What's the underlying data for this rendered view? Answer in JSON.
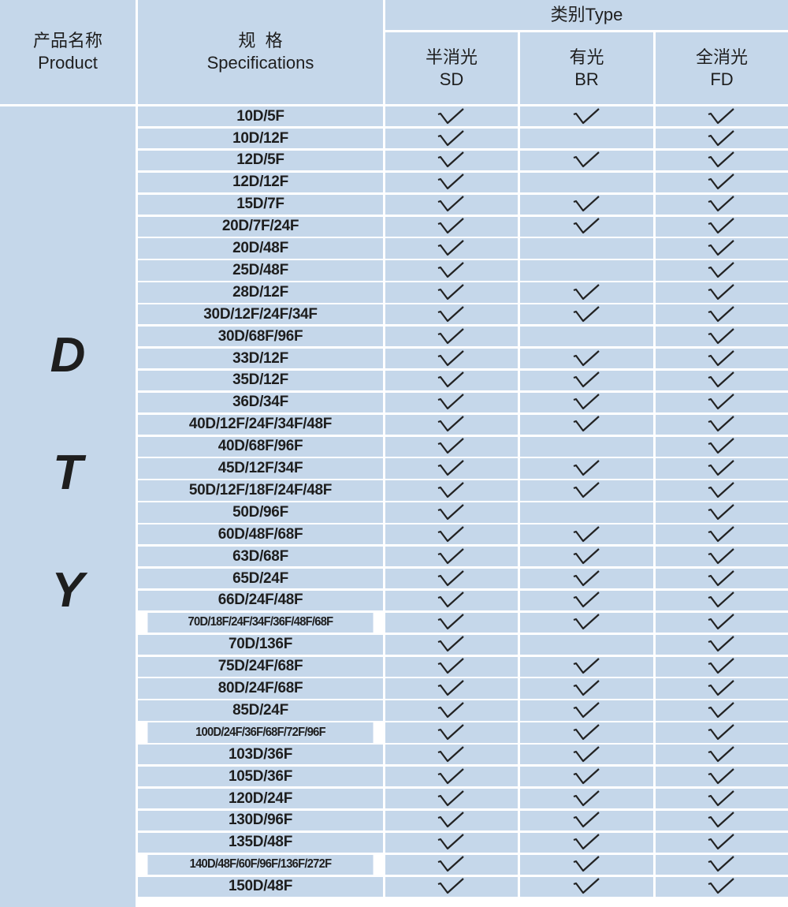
{
  "header": {
    "product_cn": "产品名称",
    "product_en": "Product",
    "spec_cn": "规  格",
    "spec_en": "Specifications",
    "type_group": "类别Type",
    "types": [
      {
        "cn": "半消光",
        "en": "SD"
      },
      {
        "cn": "有光",
        "en": "BR"
      },
      {
        "cn": "全消光",
        "en": "FD"
      }
    ]
  },
  "product_letters": [
    "D",
    "T",
    "Y"
  ],
  "colors": {
    "cell_bg": "#c5d7ea",
    "grid": "#ffffff",
    "text": "#1e1e1e"
  },
  "check_icon": "checkmark-icon",
  "rows": [
    {
      "spec": "10D/5F",
      "sd": true,
      "br": true,
      "fd": true
    },
    {
      "spec": "10D/12F",
      "sd": true,
      "br": false,
      "fd": true
    },
    {
      "spec": "12D/5F",
      "sd": true,
      "br": true,
      "fd": true
    },
    {
      "spec": "12D/12F",
      "sd": true,
      "br": false,
      "fd": true
    },
    {
      "spec": "15D/7F",
      "sd": true,
      "br": true,
      "fd": true
    },
    {
      "spec": "20D/7F/24F",
      "sd": true,
      "br": true,
      "fd": true
    },
    {
      "spec": "20D/48F",
      "sd": true,
      "br": false,
      "fd": true
    },
    {
      "spec": "25D/48F",
      "sd": true,
      "br": false,
      "fd": true
    },
    {
      "spec": "28D/12F",
      "sd": true,
      "br": true,
      "fd": true
    },
    {
      "spec": "30D/12F/24F/34F",
      "sd": true,
      "br": true,
      "fd": true
    },
    {
      "spec": "30D/68F/96F",
      "sd": true,
      "br": false,
      "fd": true
    },
    {
      "spec": "33D/12F",
      "sd": true,
      "br": true,
      "fd": true
    },
    {
      "spec": "35D/12F",
      "sd": true,
      "br": true,
      "fd": true
    },
    {
      "spec": "36D/34F",
      "sd": true,
      "br": true,
      "fd": true
    },
    {
      "spec": "40D/12F/24F/34F/48F",
      "sd": true,
      "br": true,
      "fd": true
    },
    {
      "spec": "40D/68F/96F",
      "sd": true,
      "br": false,
      "fd": true
    },
    {
      "spec": "45D/12F/34F",
      "sd": true,
      "br": true,
      "fd": true
    },
    {
      "spec": "50D/12F/18F/24F/48F",
      "sd": true,
      "br": true,
      "fd": true
    },
    {
      "spec": "50D/96F",
      "sd": true,
      "br": false,
      "fd": true
    },
    {
      "spec": "60D/48F/68F",
      "sd": true,
      "br": true,
      "fd": true
    },
    {
      "spec": "63D/68F",
      "sd": true,
      "br": true,
      "fd": true
    },
    {
      "spec": "65D/24F",
      "sd": true,
      "br": true,
      "fd": true
    },
    {
      "spec": "66D/24F/48F",
      "sd": true,
      "br": true,
      "fd": true
    },
    {
      "spec": "70D/18F/24F/34F/36F/48F/68F",
      "sd": true,
      "br": true,
      "fd": true
    },
    {
      "spec": "70D/136F",
      "sd": true,
      "br": false,
      "fd": true
    },
    {
      "spec": "75D/24F/68F",
      "sd": true,
      "br": true,
      "fd": true
    },
    {
      "spec": "80D/24F/68F",
      "sd": true,
      "br": true,
      "fd": true
    },
    {
      "spec": "85D/24F",
      "sd": true,
      "br": true,
      "fd": true
    },
    {
      "spec": "100D/24F/36F/68F/72F/96F",
      "sd": true,
      "br": true,
      "fd": true
    },
    {
      "spec": "103D/36F",
      "sd": true,
      "br": true,
      "fd": true
    },
    {
      "spec": "105D/36F",
      "sd": true,
      "br": true,
      "fd": true
    },
    {
      "spec": "120D/24F",
      "sd": true,
      "br": true,
      "fd": true
    },
    {
      "spec": "130D/96F",
      "sd": true,
      "br": true,
      "fd": true
    },
    {
      "spec": "135D/48F",
      "sd": true,
      "br": true,
      "fd": true
    },
    {
      "spec": "140D/48F/60F/96F/136F/272F",
      "sd": true,
      "br": true,
      "fd": true
    },
    {
      "spec": "150D/48F",
      "sd": true,
      "br": true,
      "fd": true
    }
  ]
}
